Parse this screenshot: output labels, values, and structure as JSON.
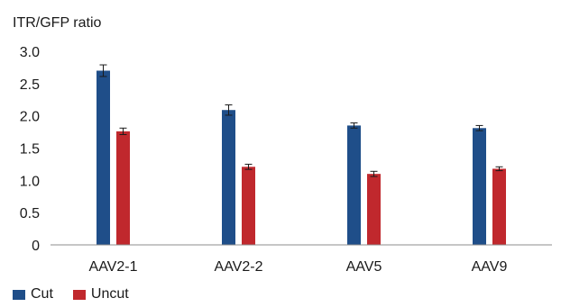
{
  "chart_data": {
    "type": "bar",
    "ylabel": "ITR/GFP ratio",
    "xlabel": "",
    "categories": [
      "AAV2-1",
      "AAV2-2",
      "AAV5",
      "AAV9"
    ],
    "ylim": [
      0,
      3.0
    ],
    "yticks": [
      0,
      0.5,
      1.0,
      1.5,
      2.0,
      2.5,
      3.0
    ],
    "ytick_labels": [
      "0",
      "0.5",
      "1.0",
      "1.5",
      "2.0",
      "2.5",
      "3.0"
    ],
    "grid": false,
    "legend_position": "bottom-left",
    "series": [
      {
        "name": "Cut",
        "color": "#1f4e89",
        "values": [
          2.7,
          2.09,
          1.85,
          1.81
        ],
        "errors": [
          0.09,
          0.08,
          0.04,
          0.04
        ]
      },
      {
        "name": "Uncut",
        "color": "#c0282d",
        "values": [
          1.76,
          1.21,
          1.1,
          1.18
        ],
        "errors": [
          0.05,
          0.04,
          0.04,
          0.03
        ]
      }
    ]
  }
}
